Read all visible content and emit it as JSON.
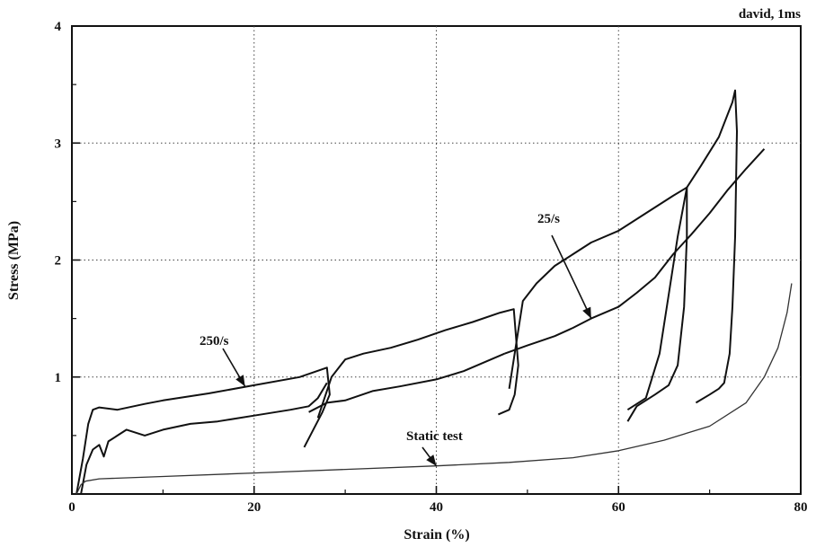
{
  "chart_data": {
    "type": "line",
    "title": "",
    "corner_label": "david, 1ms",
    "xlabel": "Strain (%)",
    "ylabel": "Stress (MPa)",
    "xlim": [
      0,
      80
    ],
    "ylim": [
      0,
      4
    ],
    "xticks": [
      0,
      20,
      40,
      60,
      80
    ],
    "yticks": [
      1,
      2,
      3,
      4
    ],
    "x_tick_labels": [
      "0",
      "20",
      "40",
      "60",
      "80"
    ],
    "y_tick_labels": [
      "1",
      "2",
      "3",
      "4"
    ],
    "grid": "dotted, at 20/40/60 strain and 1/2/3 stress",
    "annotations": [
      {
        "text": "250/s",
        "arrow_to": [
          19,
          0.92
        ]
      },
      {
        "text": "25/s",
        "arrow_to": [
          57,
          1.5
        ]
      },
      {
        "text": "Static test",
        "arrow_to": [
          40,
          0.24
        ]
      }
    ],
    "series": [
      {
        "name": "250/s",
        "color": "#111111",
        "segments": [
          [
            [
              0.5,
              0
            ],
            [
              1.2,
              0.3
            ],
            [
              1.8,
              0.6
            ],
            [
              2.3,
              0.72
            ],
            [
              3,
              0.74
            ],
            [
              5,
              0.72
            ],
            [
              8,
              0.77
            ],
            [
              10,
              0.8
            ],
            [
              15,
              0.86
            ],
            [
              20,
              0.93
            ],
            [
              25,
              1.0
            ],
            [
              28,
              1.08
            ],
            [
              28.3,
              0.85
            ],
            [
              27.5,
              0.7
            ],
            [
              26.5,
              0.55
            ],
            [
              25.5,
              0.4
            ]
          ],
          [
            [
              27,
              0.65
            ],
            [
              28.5,
              1.0
            ],
            [
              30,
              1.15
            ],
            [
              32,
              1.2
            ],
            [
              35,
              1.25
            ],
            [
              38,
              1.32
            ],
            [
              41,
              1.4
            ],
            [
              44,
              1.47
            ],
            [
              47,
              1.55
            ],
            [
              48.5,
              1.58
            ],
            [
              49,
              1.1
            ],
            [
              48.6,
              0.85
            ],
            [
              48,
              0.72
            ],
            [
              46.8,
              0.68
            ]
          ],
          [
            [
              48,
              0.9
            ],
            [
              48.8,
              1.3
            ],
            [
              49.5,
              1.65
            ],
            [
              51,
              1.8
            ],
            [
              53,
              1.95
            ],
            [
              55,
              2.05
            ],
            [
              57,
              2.15
            ],
            [
              60,
              2.25
            ],
            [
              63,
              2.4
            ],
            [
              66,
              2.55
            ],
            [
              67.5,
              2.62
            ],
            [
              67.5,
              2.2
            ],
            [
              67.2,
              1.6
            ],
            [
              66.5,
              1.1
            ],
            [
              65.5,
              0.93
            ],
            [
              64,
              0.85
            ],
            [
              62,
              0.75
            ],
            [
              61,
              0.62
            ]
          ],
          [
            [
              61,
              0.72
            ],
            [
              63,
              0.82
            ],
            [
              64.5,
              1.2
            ],
            [
              65.5,
              1.7
            ],
            [
              66.5,
              2.2
            ],
            [
              67.5,
              2.62
            ],
            [
              69,
              2.8
            ],
            [
              71,
              3.05
            ],
            [
              72.5,
              3.35
            ],
            [
              72.8,
              3.45
            ],
            [
              73,
              3.1
            ],
            [
              72.8,
              2.2
            ],
            [
              72.5,
              1.6
            ],
            [
              72.2,
              1.2
            ],
            [
              71.6,
              0.95
            ],
            [
              71,
              0.9
            ],
            [
              70,
              0.85
            ],
            [
              68.5,
              0.78
            ]
          ]
        ]
      },
      {
        "name": "25/s",
        "color": "#111111",
        "segments": [
          [
            [
              1,
              0
            ],
            [
              1.6,
              0.25
            ],
            [
              2.3,
              0.38
            ],
            [
              3,
              0.42
            ],
            [
              3.5,
              0.32
            ],
            [
              4,
              0.45
            ],
            [
              5,
              0.5
            ],
            [
              6,
              0.55
            ],
            [
              8,
              0.5
            ],
            [
              10,
              0.55
            ],
            [
              13,
              0.6
            ],
            [
              16,
              0.62
            ],
            [
              20,
              0.67
            ],
            [
              24,
              0.72
            ],
            [
              26,
              0.75
            ],
            [
              27,
              0.82
            ],
            [
              28,
              0.95
            ]
          ],
          [
            [
              26,
              0.7
            ],
            [
              28,
              0.78
            ],
            [
              30,
              0.8
            ],
            [
              33,
              0.88
            ],
            [
              36,
              0.92
            ],
            [
              40,
              0.98
            ],
            [
              43,
              1.05
            ],
            [
              46,
              1.15
            ],
            [
              47.5,
              1.2
            ]
          ],
          [
            [
              47.5,
              1.2
            ],
            [
              50,
              1.27
            ],
            [
              53,
              1.35
            ],
            [
              55,
              1.42
            ],
            [
              57,
              1.5
            ],
            [
              60,
              1.6
            ],
            [
              62,
              1.72
            ],
            [
              64,
              1.85
            ],
            [
              66,
              2.05
            ],
            [
              68,
              2.22
            ],
            [
              70,
              2.4
            ],
            [
              72,
              2.6
            ],
            [
              74,
              2.78
            ],
            [
              76,
              2.95
            ]
          ]
        ]
      },
      {
        "name": "Static test",
        "color": "#333333",
        "segments": [
          [
            [
              0.5,
              0
            ],
            [
              1,
              0.08
            ],
            [
              1.5,
              0.11
            ],
            [
              3,
              0.13
            ],
            [
              10,
              0.15
            ],
            [
              20,
              0.18
            ],
            [
              30,
              0.21
            ],
            [
              40,
              0.24
            ],
            [
              48,
              0.27
            ],
            [
              55,
              0.31
            ],
            [
              60,
              0.37
            ],
            [
              65,
              0.46
            ],
            [
              70,
              0.58
            ],
            [
              74,
              0.78
            ],
            [
              76,
              1.0
            ],
            [
              77.5,
              1.25
            ],
            [
              78.5,
              1.55
            ],
            [
              79,
              1.8
            ]
          ]
        ]
      }
    ]
  }
}
